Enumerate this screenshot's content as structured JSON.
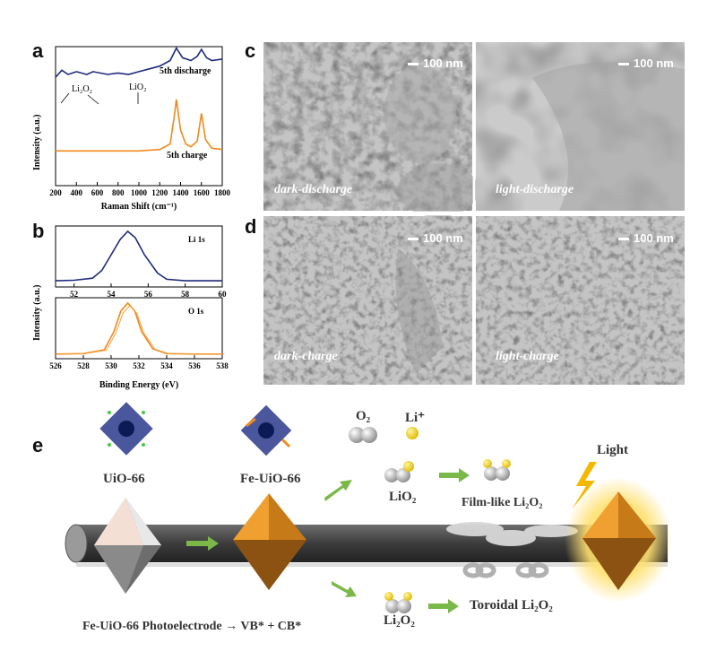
{
  "panels": {
    "a": "a",
    "b": "b",
    "c": "c",
    "d": "d",
    "e": "e"
  },
  "raman": {
    "ylabel": "Intensity (a.u.)",
    "xlabel": "Raman Shift (cm⁻¹)",
    "annotations": {
      "li2o2": "Li₂O₂",
      "lio2": "LiO₂",
      "discharge": "5th discharge",
      "charge": "5th charge"
    },
    "colors": {
      "discharge": "#1f2a7a",
      "charge": "#f08a1c"
    }
  },
  "xps": {
    "ylabel": "Intensity (a.u.)",
    "xlabel": "Binding Energy (eV)",
    "li_label": "Li 1s",
    "o_label": "O 1s"
  },
  "sem": {
    "scale": "100 nm",
    "c_left": "dark-discharge",
    "c_right": "light-discharge",
    "d_left": "dark-charge",
    "d_right": "light-charge"
  },
  "scheme": {
    "o2": "O₂",
    "li_plus": "Li⁺",
    "uio66": "UiO-66",
    "fe_uio66": "Fe-UiO-66",
    "lio2": "LiO₂",
    "film": "Film-like Li₂O₂",
    "light": "Light",
    "li2o2": "Li₂O₂",
    "toroidal": "Toroidal Li₂O₂",
    "photoelectrode": "Fe-UiO-66 Photoelectrode → VB* + CB*"
  },
  "chart_data": [
    {
      "type": "line",
      "title": "",
      "xlabel": "Raman Shift (cm⁻¹)",
      "ylabel": "Intensity (a.u.)",
      "xlim": [
        200,
        1800
      ],
      "x_ticks": [
        200,
        400,
        600,
        800,
        1000,
        1200,
        1400,
        1600,
        1800
      ],
      "series": [
        {
          "name": "5th discharge",
          "x": [
            200,
            260,
            320,
            400,
            500,
            560,
            700,
            800,
            900,
            1000,
            1100,
            1200,
            1300,
            1360,
            1420,
            1500,
            1560,
            1600,
            1650,
            1700,
            1800
          ],
          "y": [
            0.78,
            0.83,
            0.8,
            0.82,
            0.8,
            0.82,
            0.8,
            0.81,
            0.8,
            0.82,
            0.84,
            0.86,
            0.9,
            0.99,
            0.92,
            0.9,
            0.93,
            0.98,
            0.92,
            0.9,
            0.91
          ]
        },
        {
          "name": "5th charge",
          "x": [
            200,
            400,
            600,
            800,
            1000,
            1200,
            1300,
            1340,
            1360,
            1400,
            1450,
            1500,
            1560,
            1600,
            1640,
            1700,
            1800
          ],
          "y": [
            0.25,
            0.25,
            0.25,
            0.25,
            0.25,
            0.26,
            0.3,
            0.5,
            0.62,
            0.4,
            0.3,
            0.28,
            0.32,
            0.52,
            0.33,
            0.27,
            0.26
          ]
        }
      ]
    },
    {
      "type": "line",
      "title": "Li 1s",
      "xlabel": "Binding Energy (eV)",
      "xlim": [
        51,
        60
      ],
      "x_ticks": [
        52,
        54,
        56,
        58,
        60
      ],
      "series": [
        {
          "name": "Li 1s",
          "x": [
            51,
            52,
            53,
            53.5,
            54,
            54.5,
            54.9,
            55.3,
            55.8,
            56.5,
            57,
            58,
            59,
            60
          ],
          "y": [
            0.05,
            0.06,
            0.1,
            0.25,
            0.55,
            0.85,
            1.0,
            0.88,
            0.55,
            0.2,
            0.08,
            0.05,
            0.05,
            0.05
          ]
        }
      ]
    },
    {
      "type": "line",
      "title": "O 1s",
      "xlabel": "Binding Energy (eV)",
      "xlim": [
        526,
        538
      ],
      "x_ticks": [
        526,
        528,
        530,
        532,
        534,
        536,
        538
      ],
      "series": [
        {
          "name": "O 1s",
          "x": [
            526,
            528,
            529.5,
            530.2,
            530.7,
            531.2,
            531.7,
            532.2,
            533,
            534,
            536,
            538
          ],
          "y": [
            0.02,
            0.03,
            0.1,
            0.45,
            0.85,
            1.0,
            0.85,
            0.45,
            0.12,
            0.03,
            0.02,
            0.02
          ]
        }
      ]
    }
  ]
}
